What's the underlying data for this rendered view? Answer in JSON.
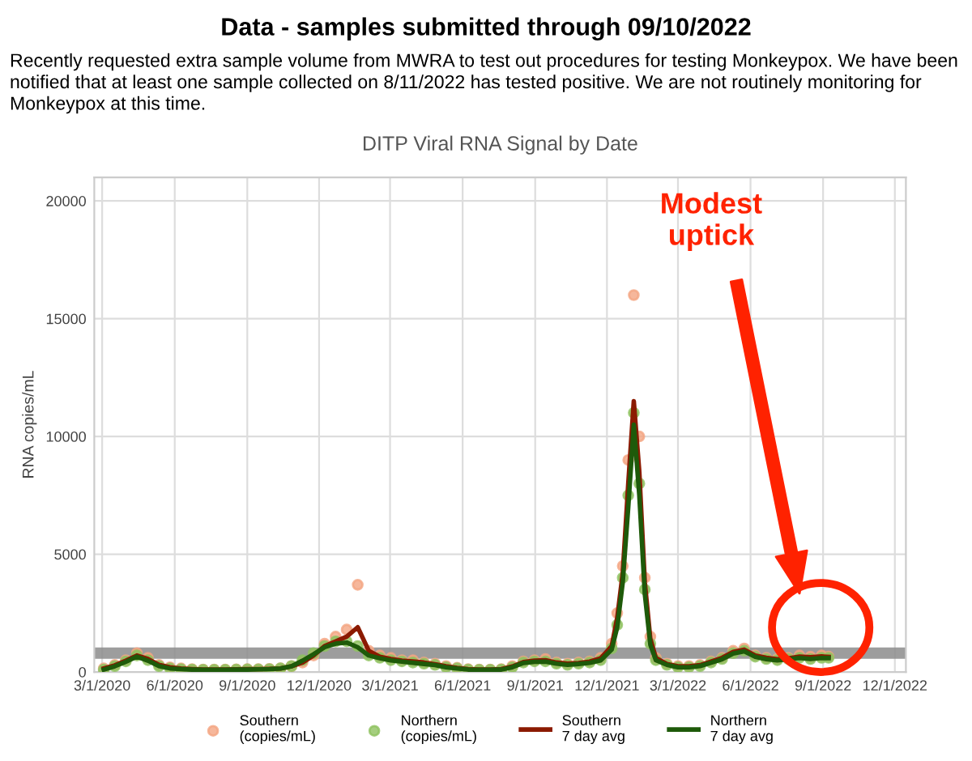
{
  "chart_data": {
    "type": "scatter",
    "title": "DITP Viral RNA Signal by Date",
    "ylabel": "RNA copies/mL",
    "x": [
      "2020-03-03",
      "2020-03-17",
      "2020-03-31",
      "2020-04-14",
      "2020-04-28",
      "2020-05-12",
      "2020-05-26",
      "2020-06-09",
      "2020-06-23",
      "2020-07-07",
      "2020-07-21",
      "2020-08-04",
      "2020-08-18",
      "2020-09-01",
      "2020-09-15",
      "2020-09-29",
      "2020-10-13",
      "2020-10-27",
      "2020-11-10",
      "2020-11-24",
      "2020-12-08",
      "2020-12-22",
      "2021-01-05",
      "2021-01-19",
      "2021-02-02",
      "2021-02-16",
      "2021-03-02",
      "2021-03-16",
      "2021-03-30",
      "2021-04-13",
      "2021-04-27",
      "2021-05-11",
      "2021-05-25",
      "2021-06-08",
      "2021-06-22",
      "2021-07-06",
      "2021-07-20",
      "2021-08-03",
      "2021-08-17",
      "2021-08-31",
      "2021-09-14",
      "2021-09-28",
      "2021-10-12",
      "2021-10-26",
      "2021-11-09",
      "2021-11-23",
      "2021-12-07",
      "2021-12-14",
      "2021-12-21",
      "2021-12-28",
      "2022-01-04",
      "2022-01-11",
      "2022-01-18",
      "2022-01-25",
      "2022-02-01",
      "2022-02-15",
      "2022-03-01",
      "2022-03-15",
      "2022-03-29",
      "2022-04-12",
      "2022-04-26",
      "2022-05-10",
      "2022-05-24",
      "2022-06-07",
      "2022-06-21",
      "2022-07-05",
      "2022-07-19",
      "2022-08-02",
      "2022-08-16",
      "2022-08-30",
      "2022-09-08"
    ],
    "series": [
      {
        "name": "Southern\n(copies/mL)",
        "color": "#f4a582",
        "values": [
          150,
          300,
          500,
          800,
          600,
          300,
          200,
          150,
          120,
          100,
          100,
          100,
          110,
          120,
          120,
          130,
          150,
          250,
          400,
          700,
          1200,
          1500,
          1800,
          3700,
          900,
          700,
          600,
          500,
          500,
          400,
          350,
          250,
          180,
          120,
          100,
          100,
          120,
          250,
          450,
          500,
          550,
          400,
          350,
          400,
          450,
          600,
          1200,
          2500,
          4500,
          9000,
          16000,
          10000,
          4000,
          1500,
          600,
          350,
          250,
          250,
          300,
          450,
          600,
          900,
          1000,
          700,
          600,
          550,
          600,
          700,
          650,
          700,
          650
        ]
      },
      {
        "name": "Northern\n(copies/mL)",
        "color": "#8fc25f",
        "values": [
          100,
          250,
          450,
          700,
          500,
          250,
          150,
          120,
          100,
          90,
          90,
          90,
          100,
          110,
          110,
          120,
          150,
          250,
          500,
          800,
          1100,
          1300,
          1300,
          1100,
          700,
          600,
          500,
          450,
          400,
          350,
          300,
          200,
          150,
          100,
          90,
          90,
          100,
          200,
          400,
          450,
          450,
          350,
          300,
          350,
          400,
          500,
          1000,
          2000,
          4000,
          7500,
          11000,
          8000,
          3500,
          1200,
          500,
          300,
          200,
          200,
          250,
          400,
          550,
          800,
          900,
          650,
          550,
          500,
          550,
          600,
          550,
          600,
          600
        ]
      },
      {
        "name": "Southern\n7 day avg",
        "type": "line",
        "marker": "none",
        "color": "#8b1a00",
        "values": [
          150,
          280,
          480,
          700,
          550,
          300,
          200,
          150,
          120,
          100,
          100,
          100,
          110,
          120,
          120,
          130,
          150,
          240,
          400,
          700,
          1100,
          1300,
          1500,
          1900,
          900,
          650,
          550,
          480,
          450,
          400,
          330,
          240,
          170,
          120,
          100,
          100,
          120,
          230,
          420,
          480,
          500,
          400,
          350,
          380,
          440,
          580,
          1100,
          2300,
          4200,
          8000,
          11500,
          8500,
          3800,
          1400,
          600,
          340,
          240,
          240,
          290,
          440,
          600,
          850,
          950,
          700,
          600,
          540,
          580,
          650,
          630,
          660,
          640
        ]
      },
      {
        "name": "Northern\n7 day avg",
        "type": "line",
        "marker": "none",
        "color": "#1e5a0a",
        "values": [
          100,
          240,
          430,
          650,
          480,
          250,
          150,
          120,
          100,
          90,
          90,
          90,
          100,
          100,
          110,
          120,
          150,
          240,
          480,
          750,
          1050,
          1200,
          1250,
          1050,
          700,
          580,
          490,
          440,
          390,
          340,
          290,
          200,
          150,
          100,
          90,
          90,
          100,
          200,
          380,
          430,
          440,
          350,
          300,
          340,
          390,
          490,
          950,
          1900,
          3800,
          7000,
          10500,
          7500,
          3300,
          1150,
          500,
          300,
          200,
          200,
          250,
          390,
          540,
          780,
          880,
          640,
          540,
          490,
          540,
          590,
          550,
          590,
          590
        ]
      }
    ],
    "xlim": [
      "2020-02-20",
      "2022-12-15"
    ],
    "xticks": [
      {
        "value": "2020-03-01",
        "label": "3/1/2020"
      },
      {
        "value": "2020-06-01",
        "label": "6/1/2020"
      },
      {
        "value": "2020-09-01",
        "label": "9/1/2020"
      },
      {
        "value": "2020-12-01",
        "label": "12/1/2020"
      },
      {
        "value": "2021-03-01",
        "label": "3/1/2021"
      },
      {
        "value": "2021-06-01",
        "label": "6/1/2021"
      },
      {
        "value": "2021-09-01",
        "label": "9/1/2021"
      },
      {
        "value": "2021-12-01",
        "label": "12/1/2021"
      },
      {
        "value": "2022-03-01",
        "label": "3/1/2022"
      },
      {
        "value": "2022-06-01",
        "label": "6/1/2022"
      },
      {
        "value": "2022-09-01",
        "label": "9/1/2022"
      },
      {
        "value": "2022-12-01",
        "label": "12/1/2022"
      }
    ],
    "ylim": [
      0,
      21000
    ],
    "yticks": [
      0,
      5000,
      10000,
      15000,
      20000
    ],
    "ref_lines": [
      {
        "axis": "y",
        "value": 800,
        "color": "#8c8c8c"
      }
    ],
    "grid": true,
    "legend": "bottom",
    "marker": "circle",
    "annotations": [
      "Data - samples submitted through 09/10/2022",
      "Recently requested extra sample volume from MWRA to test out procedures for testing Monkeypox. We have been notified that at least one sample collected on 8/11/2022 has tested positive. We are not routinely monitoring for Monkeypox at this time.",
      "Modest\nuptick"
    ]
  }
}
